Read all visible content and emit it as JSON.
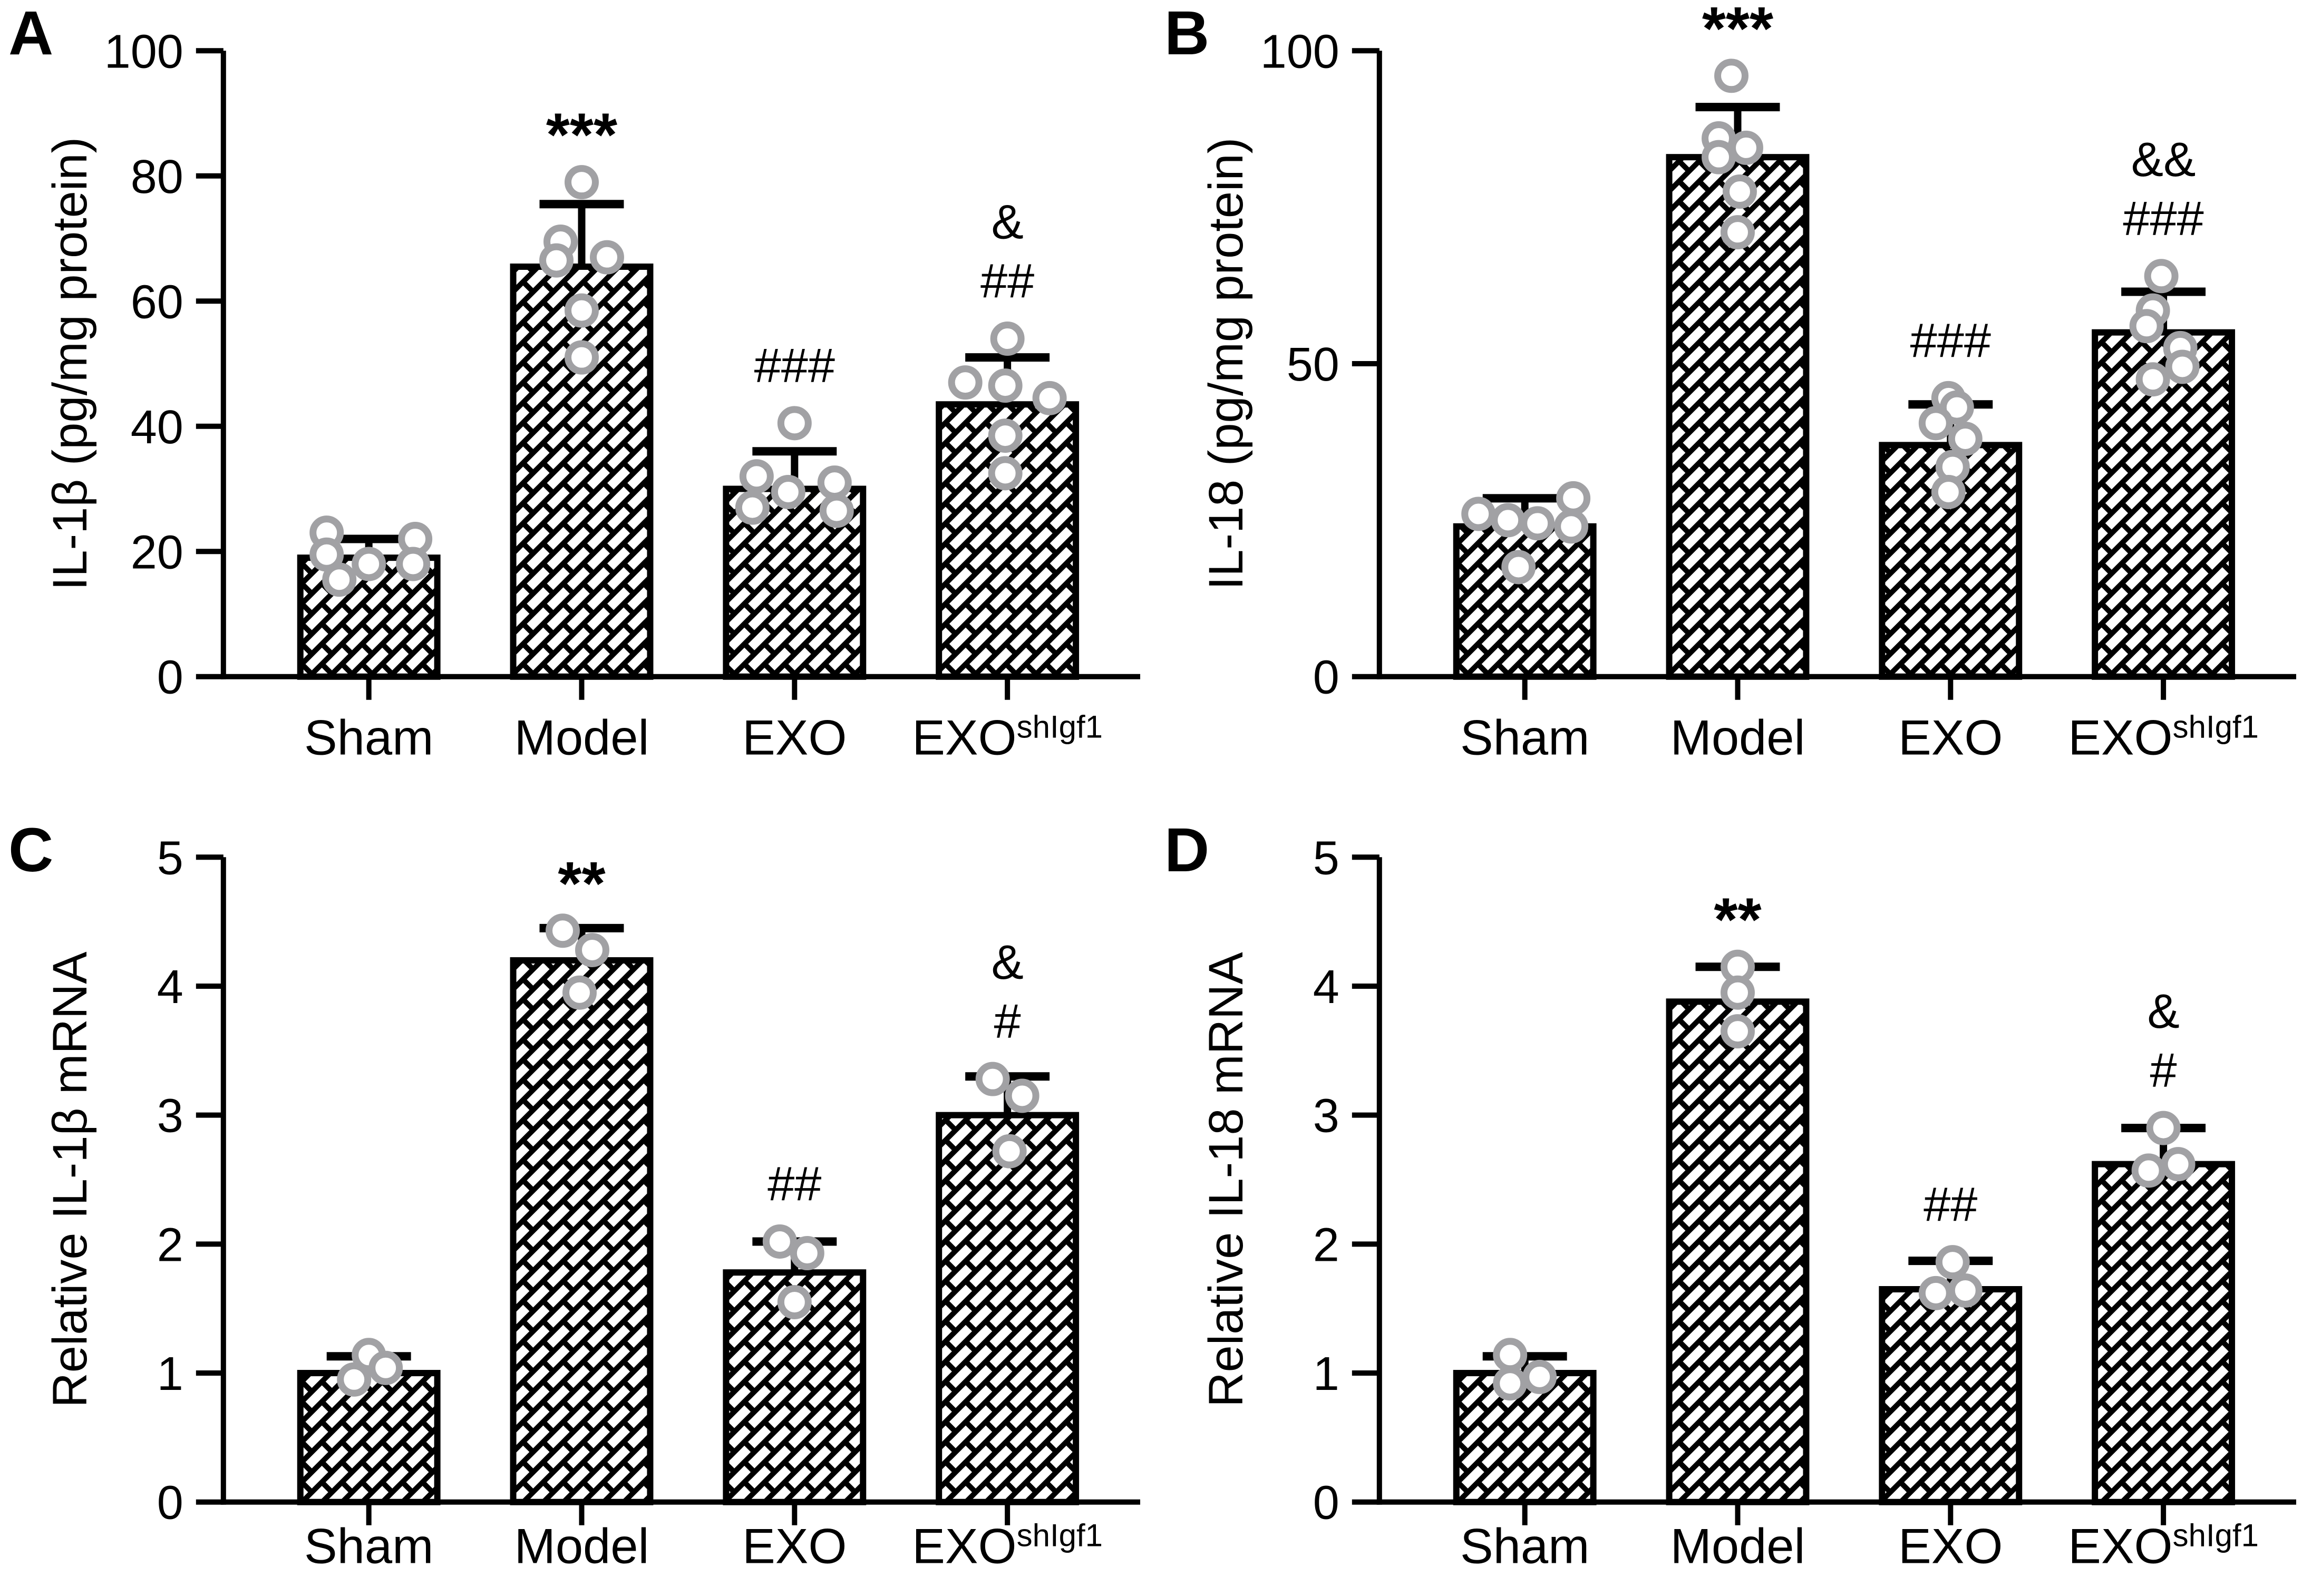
{
  "styles": {
    "background": "#ffffff",
    "ink": "#000000",
    "point_stroke": "#a1a1a4",
    "bar_fill": "#ffffff"
  },
  "chart_data": [
    {
      "panel_label": "A",
      "type": "bar",
      "ylabel": "IL-1β (pg/mg protein)",
      "xlabel": "",
      "ylim": [
        0,
        100
      ],
      "yticks": [
        0,
        20,
        40,
        60,
        80,
        100
      ],
      "grid": false,
      "legend": "none",
      "categories": [
        "Sham",
        "Model",
        "EXO",
        "EXOshIgf1"
      ],
      "category_labels": [
        {
          "base": "Sham"
        },
        {
          "base": "Model"
        },
        {
          "base": "EXO"
        },
        {
          "base": "EXO",
          "sup": "shIgf1"
        }
      ],
      "values": [
        19,
        65.5,
        30,
        43.5
      ],
      "errors_sd": [
        3,
        10,
        6,
        7.5
      ],
      "significance": [
        [],
        [
          "***"
        ],
        [
          "###"
        ],
        [
          "&",
          "##"
        ]
      ],
      "points": [
        [
          [
            23,
            -40
          ],
          [
            22,
            44
          ],
          [
            19.5,
            -40
          ],
          [
            18,
            0
          ],
          [
            18,
            42
          ],
          [
            15.5,
            -28
          ]
        ],
        [
          [
            79,
            0
          ],
          [
            69.5,
            -20
          ],
          [
            66.5,
            -24
          ],
          [
            67,
            24
          ],
          [
            58.5,
            0
          ],
          [
            51,
            0
          ]
        ],
        [
          [
            40.5,
            0
          ],
          [
            32,
            -36
          ],
          [
            29.5,
            -6
          ],
          [
            27,
            -40
          ],
          [
            31,
            38
          ],
          [
            26.5,
            40
          ]
        ],
        [
          [
            54,
            0
          ],
          [
            47,
            -40
          ],
          [
            46.5,
            -2
          ],
          [
            44.5,
            40
          ],
          [
            38.5,
            -2
          ],
          [
            32.5,
            -2
          ]
        ]
      ]
    },
    {
      "panel_label": "B",
      "type": "bar",
      "ylabel": "IL-18 (pg/mg protein)",
      "xlabel": "",
      "ylim": [
        0,
        100
      ],
      "yticks": [
        0,
        50,
        100
      ],
      "grid": false,
      "legend": "none",
      "categories": [
        "Sham",
        "Model",
        "EXO",
        "EXOshIgf1"
      ],
      "category_labels": [
        {
          "base": "Sham"
        },
        {
          "base": "Model"
        },
        {
          "base": "EXO"
        },
        {
          "base": "EXO",
          "sup": "shIgf1"
        }
      ],
      "values": [
        24,
        83,
        37,
        55
      ],
      "errors_sd": [
        4.5,
        8,
        6.5,
        6.5
      ],
      "significance": [
        [],
        [
          "***"
        ],
        [
          "###"
        ],
        [
          "&&",
          "###"
        ]
      ],
      "points": [
        [
          [
            28.5,
            46
          ],
          [
            26,
            -44
          ],
          [
            25,
            -16
          ],
          [
            24.5,
            12
          ],
          [
            24,
            44
          ],
          [
            17.5,
            -6
          ]
        ],
        [
          [
            96,
            -6
          ],
          [
            86,
            -18
          ],
          [
            84.5,
            8
          ],
          [
            83,
            -18
          ],
          [
            77.5,
            2
          ],
          [
            71,
            0
          ]
        ],
        [
          [
            44.5,
            -2
          ],
          [
            43,
            6
          ],
          [
            40.5,
            -14
          ],
          [
            38,
            14
          ],
          [
            33.5,
            2
          ],
          [
            29.5,
            -2
          ]
        ],
        [
          [
            64,
            -2
          ],
          [
            58.5,
            -10
          ],
          [
            56,
            -16
          ],
          [
            52.5,
            16
          ],
          [
            49.5,
            18
          ],
          [
            47.5,
            -10
          ]
        ]
      ]
    },
    {
      "panel_label": "C",
      "type": "bar",
      "ylabel": "Relative IL-1β mRNA",
      "xlabel": "",
      "ylim": [
        0,
        5
      ],
      "yticks": [
        0,
        1,
        2,
        3,
        4,
        5
      ],
      "grid": false,
      "legend": "none",
      "categories": [
        "Sham",
        "Model",
        "EXO",
        "EXOshIgf1"
      ],
      "category_labels": [
        {
          "base": "Sham"
        },
        {
          "base": "Model"
        },
        {
          "base": "EXO"
        },
        {
          "base": "EXO",
          "sup": "shIgf1"
        }
      ],
      "values": [
        1.0,
        4.2,
        1.78,
        3.0
      ],
      "errors_sd": [
        0.13,
        0.25,
        0.24,
        0.3
      ],
      "significance": [
        [],
        [
          "**"
        ],
        [
          "##"
        ],
        [
          "&",
          "#"
        ]
      ],
      "points": [
        [
          [
            1.14,
            0
          ],
          [
            1.04,
            16
          ],
          [
            0.95,
            -14
          ]
        ],
        [
          [
            4.43,
            -18
          ],
          [
            4.28,
            10
          ],
          [
            3.95,
            -2
          ]
        ],
        [
          [
            2.02,
            -14
          ],
          [
            1.93,
            12
          ],
          [
            1.55,
            0
          ]
        ],
        [
          [
            3.28,
            -14
          ],
          [
            3.15,
            14
          ],
          [
            2.72,
            2
          ]
        ]
      ]
    },
    {
      "panel_label": "D",
      "type": "bar",
      "ylabel": "Relative IL-18 mRNA",
      "xlabel": "",
      "ylim": [
        0,
        5
      ],
      "yticks": [
        0,
        1,
        2,
        3,
        4,
        5
      ],
      "grid": false,
      "legend": "none",
      "categories": [
        "Sham",
        "Model",
        "EXO",
        "EXOshIgf1"
      ],
      "category_labels": [
        {
          "base": "Sham"
        },
        {
          "base": "Model"
        },
        {
          "base": "EXO"
        },
        {
          "base": "EXO",
          "sup": "shIgf1"
        }
      ],
      "values": [
        1.0,
        3.88,
        1.65,
        2.62
      ],
      "errors_sd": [
        0.13,
        0.27,
        0.22,
        0.28
      ],
      "significance": [
        [],
        [
          "**"
        ],
        [
          "##"
        ],
        [
          "&",
          "#"
        ]
      ],
      "points": [
        [
          [
            1.14,
            -14
          ],
          [
            0.97,
            14
          ],
          [
            0.92,
            -14
          ]
        ],
        [
          [
            4.15,
            0
          ],
          [
            3.95,
            0
          ],
          [
            3.65,
            0
          ]
        ],
        [
          [
            1.86,
            2
          ],
          [
            1.62,
            -14
          ],
          [
            1.64,
            14
          ]
        ],
        [
          [
            2.9,
            0
          ],
          [
            2.57,
            -14
          ],
          [
            2.62,
            14
          ]
        ]
      ]
    }
  ]
}
